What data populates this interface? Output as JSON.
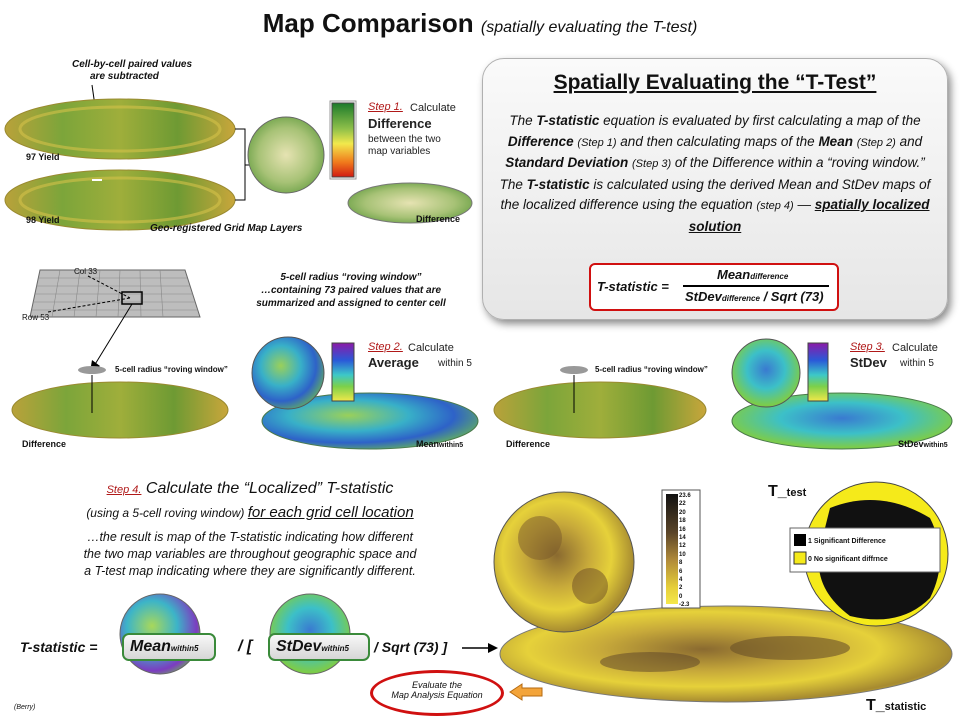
{
  "title": {
    "main": "Map Comparison",
    "sub": "(spatially evaluating the T-test)"
  },
  "top_panel": {
    "note_line1": "Cell-by-cell paired values",
    "note_line2": "are subtracted",
    "map1_label": "97 Yield",
    "map2_label": "98 Yield",
    "diff_label": "Difference",
    "caption": "Geo-registered Grid Map Layers",
    "step_label": "Step 1.",
    "step_action": "Calculate",
    "step_title": "Difference",
    "step_desc1": "between the two",
    "step_desc2": "map variables"
  },
  "window_panel": {
    "col_label": "Col 33",
    "row_label": "Row 53",
    "line1": "5-cell radius “roving window”",
    "line2": "…containing 73 paired values that are",
    "line3": "summarized and assigned to center cell"
  },
  "step2": {
    "window_label": "5-cell radius “roving window”",
    "left_label": "Difference",
    "right_label": "Mean",
    "right_sub": "within5",
    "step_label": "Step 2.",
    "step_action": "Calculate",
    "step_title": "Average",
    "step_desc": "within 5"
  },
  "step3": {
    "window_label": "5-cell radius “roving window”",
    "left_label": "Difference",
    "right_label": "StDev",
    "right_sub": "within5",
    "step_label": "Step 3.",
    "step_action": "Calculate",
    "step_title": "StDev",
    "step_desc": "within 5"
  },
  "card": {
    "heading": "Spatially Evaluating the “T-Test”",
    "equation": {
      "lhs": "T-statistic =",
      "numerator": "Mean",
      "numerator_sub": "difference",
      "denominator": "StDev",
      "denominator_sub": "difference",
      "denominator_tail": "/ Sqrt (73)"
    }
  },
  "step4": {
    "step_label": "Step 4.",
    "head_text": "Calculate the “Localized” T-statistic",
    "line2a": "(using a 5-cell roving window)",
    "line2b": "for each grid cell location",
    "result1": "…the result is map of the T-statistic indicating how different",
    "result2": "the two map variables are throughout geographic space and",
    "result3": "a T-test map indicating where they are significantly different."
  },
  "bottom_eq": {
    "lhs": "T-statistic =",
    "mean": "Mean",
    "mean_sub": "within5",
    "div_open": "/ [",
    "stdev": "StDev",
    "stdev_sub": "within5",
    "tail": "/ Sqrt (73)  ]"
  },
  "evaluate": {
    "line1": "Evaluate the",
    "line2": "Map Analysis Equation"
  },
  "legend_tstat": [
    "23.6",
    "22",
    "20",
    "18",
    "16",
    "14",
    "12",
    "10",
    "8",
    "6",
    "4",
    "2",
    "0",
    "-2.3"
  ],
  "legend_ttest": [
    "1 Significant Difference",
    "0 No significant diffrnce"
  ],
  "t_test_label": {
    "main": "T_",
    "sub": "test"
  },
  "t_stat_label": {
    "main": "T_",
    "sub": "statistic"
  },
  "credit": "(Berry)"
}
